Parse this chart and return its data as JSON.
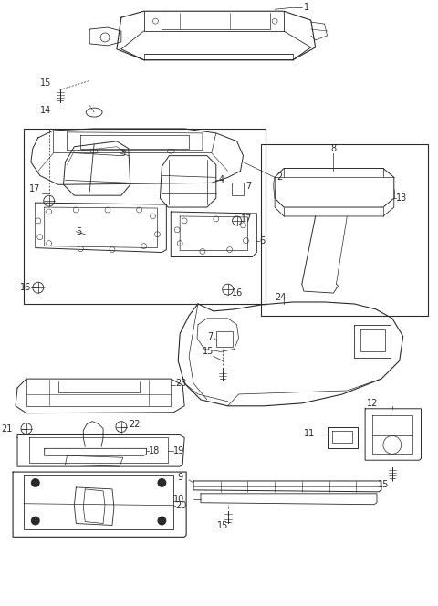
{
  "bg_color": "#ffffff",
  "line_color": "#2a2a2a",
  "fig_width": 4.8,
  "fig_height": 6.64,
  "dpi": 100
}
